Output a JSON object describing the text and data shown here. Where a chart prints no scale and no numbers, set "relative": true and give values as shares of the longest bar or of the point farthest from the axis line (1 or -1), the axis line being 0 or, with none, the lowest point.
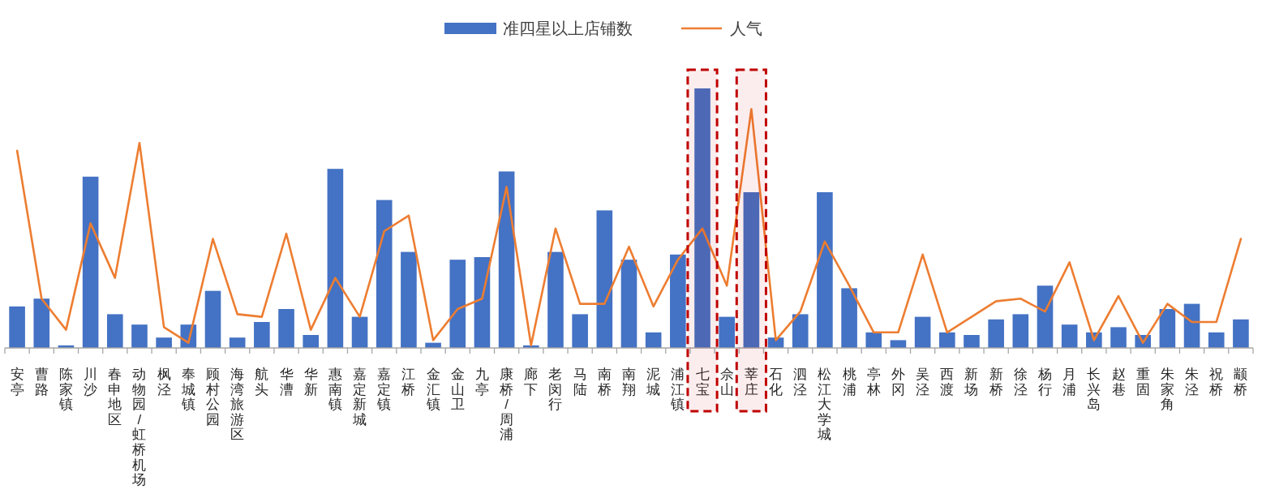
{
  "chart_data": {
    "type": "bar",
    "relative": true,
    "legend": "top",
    "categories": [
      "安亭",
      "曹路",
      "陈家镇",
      "川沙",
      "春申地区",
      "动物园/虹桥机场",
      "枫泾",
      "奉城镇",
      "顾村公园",
      "海湾旅游区",
      "航头",
      "华漕",
      "华新",
      "惠南镇",
      "嘉定新城",
      "嘉定镇",
      "江桥",
      "金汇镇",
      "金山卫",
      "九亭",
      "康桥/周浦",
      "廊下",
      "老闵行",
      "马陆",
      "南桥",
      "南翔",
      "泥城",
      "浦江镇",
      "七宝",
      "佘山",
      "莘庄",
      "石化",
      "泗泾",
      "松江大学城",
      "桃浦",
      "亭林",
      "外冈",
      "吴泾",
      "西渡",
      "新场",
      "新桥",
      "徐泾",
      "杨行",
      "月浦",
      "长兴岛",
      "赵巷",
      "重固",
      "朱家角",
      "朱泾",
      "祝桥",
      "颛桥"
    ],
    "series": [
      {
        "name": "准四星以上店铺数",
        "color": "#4472c4",
        "values": [
          0.16,
          0.19,
          0.01,
          0.66,
          0.13,
          0.09,
          0.04,
          0.09,
          0.22,
          0.04,
          0.1,
          0.15,
          0.05,
          0.69,
          0.12,
          0.57,
          0.37,
          0.02,
          0.34,
          0.35,
          0.68,
          0.01,
          0.37,
          0.13,
          0.53,
          0.34,
          0.06,
          0.36,
          1,
          0.12,
          0.6,
          0.04,
          0.13,
          0.6,
          0.23,
          0.06,
          0.03,
          0.12,
          0.06,
          0.05,
          0.11,
          0.13,
          0.24,
          0.09,
          0.06,
          0.08,
          0.05,
          0.15,
          0.17,
          0.06,
          0.11
        ]
      },
      {
        "name": "人气",
        "type": "line",
        "color": "#ed7d31",
        "values": [
          0.76,
          0.19,
          0.07,
          0.48,
          0.27,
          0.79,
          0.08,
          0.02,
          0.42,
          0.13,
          0.12,
          0.44,
          0.07,
          0.27,
          0.12,
          0.45,
          0.51,
          0.03,
          0.15,
          0.19,
          0.62,
          0.01,
          0.46,
          0.17,
          0.17,
          0.39,
          0.16,
          0.34,
          0.46,
          0.24,
          0.92,
          0.03,
          0.14,
          0.41,
          0.24,
          0.06,
          0.06,
          0.36,
          0.06,
          0.12,
          0.18,
          0.19,
          0.14,
          0.33,
          0.03,
          0.2,
          0.02,
          0.17,
          0.1,
          0.1,
          0.42
        ]
      }
    ],
    "bands": [
      {
        "axis": "x",
        "from": "七宝",
        "to": "七宝",
        "color": "#c00000"
      },
      {
        "axis": "x",
        "from": "莘庄",
        "to": "莘庄",
        "color": "#c00000"
      }
    ]
  }
}
